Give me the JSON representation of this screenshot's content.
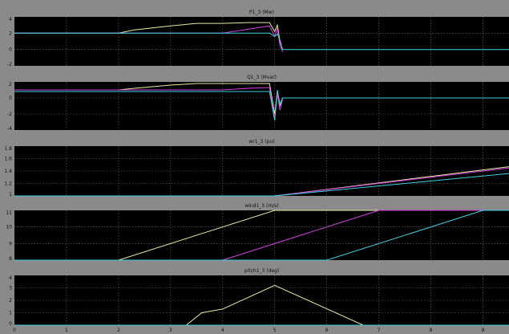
{
  "colors": {
    "background": "#8a8a8a",
    "axes_bg": "#000000",
    "grid": "#6a6a6a",
    "series_colors": [
      "#e8e8a0",
      "#d040e0",
      "#40d0e0"
    ]
  },
  "x_ticks": [
    "0",
    "1",
    "2",
    "3",
    "4",
    "5",
    "6",
    "7",
    "8",
    "9"
  ],
  "chart_data": [
    {
      "type": "line",
      "title": "P1_3 (Mw)",
      "xlim": [
        0,
        9.5
      ],
      "ylim": [
        -2,
        4
      ],
      "y_ticks": [
        "4",
        "2",
        "0",
        "-2"
      ],
      "grid": true,
      "series": [
        {
          "x": [
            0,
            2,
            2.3,
            3,
            3.5,
            4,
            4.5,
            4.9,
            5.0,
            5.05,
            5.1,
            5.15
          ],
          "y": [
            2,
            2,
            2.4,
            2.9,
            3.2,
            3.2,
            3.3,
            3.3,
            2.2,
            3.0,
            1.0,
            0.0
          ]
        },
        {
          "x": [
            0,
            4.0,
            4.5,
            4.9,
            5.0,
            5.05,
            5.1,
            5.15
          ],
          "y": [
            2,
            2,
            2.5,
            2.9,
            1.6,
            2.6,
            0.5,
            -0.3
          ]
        },
        {
          "x": [
            0,
            4.9,
            5.0,
            5.05,
            5.1,
            5.15,
            9.5
          ],
          "y": [
            2,
            2,
            1.6,
            1.9,
            1.2,
            0,
            0
          ]
        }
      ]
    },
    {
      "type": "line",
      "title": "Q1_3 (Mvar)",
      "xlim": [
        0,
        9.5
      ],
      "ylim": [
        -4,
        2
      ],
      "y_ticks": [
        "2",
        "0",
        "-2",
        "-4"
      ],
      "grid": true,
      "series": [
        {
          "x": [
            0,
            2,
            2.3,
            3,
            3.5,
            4,
            4.5,
            4.9,
            5.0,
            5.05,
            5.1,
            5.15
          ],
          "y": [
            1,
            1,
            1.2,
            1.6,
            1.8,
            1.8,
            1.8,
            1.8,
            -2.0,
            0.8,
            -1.0,
            0.0
          ]
        },
        {
          "x": [
            0,
            4.0,
            4.5,
            4.9,
            5.0,
            5.05,
            5.1,
            5.15
          ],
          "y": [
            1,
            1,
            1.2,
            1.3,
            -2.5,
            0.5,
            -1.5,
            -0.2
          ]
        },
        {
          "x": [
            0,
            4.9,
            5.0,
            5.05,
            5.1,
            5.15,
            9.5
          ],
          "y": [
            0.8,
            0.8,
            -2.8,
            1.0,
            -0.8,
            0,
            0
          ]
        }
      ]
    },
    {
      "type": "line",
      "title": "wr1_3 (pu)",
      "xlim": [
        0,
        9.5
      ],
      "ylim": [
        1,
        1.8
      ],
      "y_ticks": [
        "1.8",
        "1.6",
        "1.4",
        "1.2",
        "1"
      ],
      "grid": true,
      "series": [
        {
          "x": [
            0,
            5,
            9.5
          ],
          "y": [
            1,
            1,
            1.47
          ]
        },
        {
          "x": [
            0,
            5,
            9.5
          ],
          "y": [
            1,
            1,
            1.45
          ]
        },
        {
          "x": [
            0,
            5,
            9.5
          ],
          "y": [
            1,
            1,
            1.36
          ]
        }
      ]
    },
    {
      "type": "line",
      "title": "wind1_3 (m/s)",
      "xlim": [
        0,
        9.5
      ],
      "ylim": [
        8,
        11
      ],
      "y_ticks": [
        "11",
        "10",
        "9",
        "8"
      ],
      "grid": true,
      "series": [
        {
          "x": [
            0,
            2,
            5,
            9.5
          ],
          "y": [
            8,
            8,
            11,
            11
          ]
        },
        {
          "x": [
            0,
            4,
            7,
            9.5
          ],
          "y": [
            8,
            8,
            11,
            11
          ]
        },
        {
          "x": [
            0,
            6,
            9,
            9.5
          ],
          "y": [
            8,
            8,
            11,
            11
          ]
        }
      ]
    },
    {
      "type": "line",
      "title": "pitch1_3 (deg)",
      "xlim": [
        0,
        9.5
      ],
      "ylim": [
        0,
        4
      ],
      "y_ticks": [
        "4",
        "3",
        "2",
        "1",
        "0"
      ],
      "grid": true,
      "series": [
        {
          "x": [
            0,
            3.3,
            3.6,
            4.0,
            5.0,
            6.7,
            9.5
          ],
          "y": [
            0,
            0,
            1.0,
            1.3,
            3.2,
            0,
            0
          ]
        },
        {
          "x": [
            0,
            9.5
          ],
          "y": [
            0,
            0
          ]
        },
        {
          "x": [
            0,
            9.5
          ],
          "y": [
            0,
            0
          ]
        }
      ]
    }
  ]
}
